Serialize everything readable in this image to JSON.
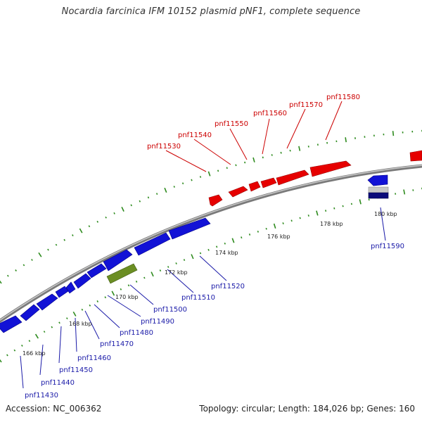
{
  "title": "Nocardia farcinica IFM 10152 plasmid pNF1, complete sequence",
  "footer": {
    "accession": "Accession: NC_006362",
    "summary": "Topology: circular; Length: 184,026 bp; Genes: 160"
  },
  "colors": {
    "forward_gene": "#e60000",
    "reverse_gene": "#1212d6",
    "other_gene": "#6b8e23",
    "backbone": "#8c8c8c",
    "tick": "#2e8b1e",
    "forward_label": "#cc0000",
    "reverse_label": "#1a1aa8"
  },
  "kbp_ticks": [
    "166 kbp",
    "168 kbp",
    "170 kbp",
    "172 kbp",
    "174 kbp",
    "176 kbp",
    "178 kbp",
    "180 kbp"
  ],
  "gene_labels": {
    "forward": [
      "pnf11530",
      "pnf11540",
      "pnf11550",
      "pnf11560",
      "pnf11570",
      "pnf11580"
    ],
    "reverse": [
      "pnf11430",
      "pnf11440",
      "pnf11450",
      "pnf11460",
      "pnf11470",
      "pnf11480",
      "pnf11490",
      "pnf11500",
      "pnf11510",
      "pnf11520",
      "pnf11590"
    ]
  }
}
